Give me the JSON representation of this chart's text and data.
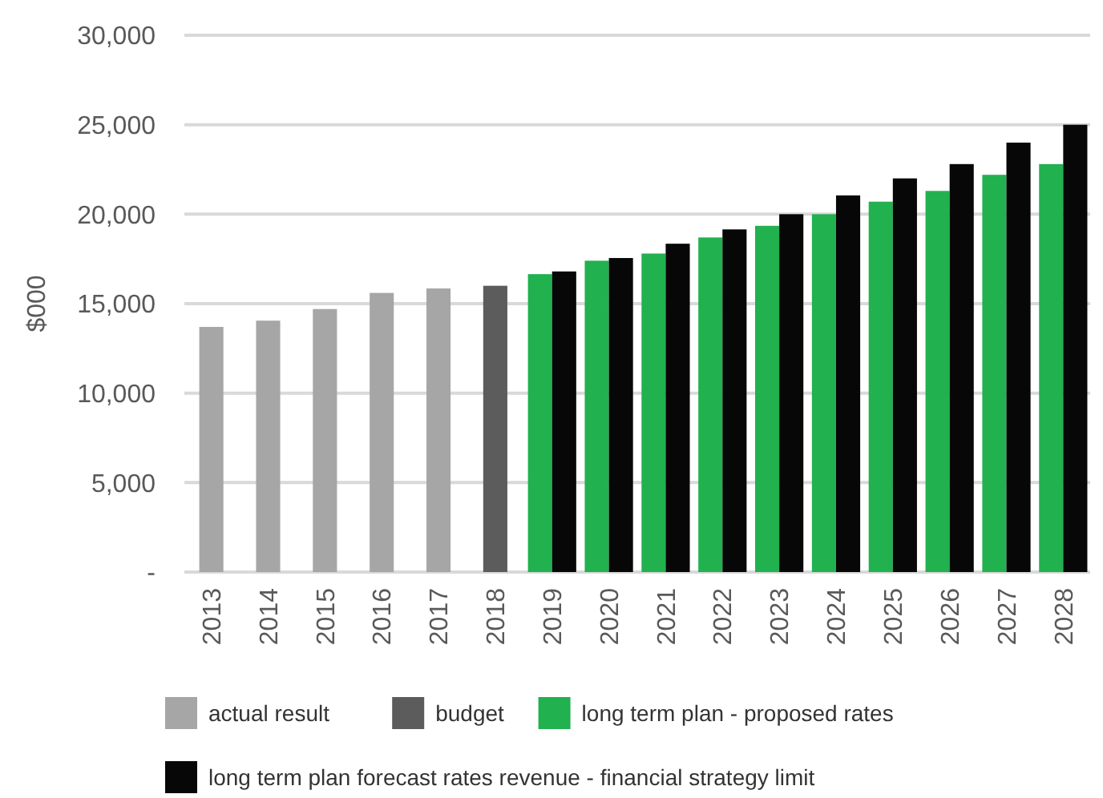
{
  "chart_data": {
    "type": "bar",
    "ylabel": "$000",
    "categories": [
      "2013",
      "2014",
      "2015",
      "2016",
      "2017",
      "2018",
      "2019",
      "2020",
      "2021",
      "2022",
      "2023",
      "2024",
      "2025",
      "2026",
      "2027",
      "2028"
    ],
    "series": [
      {
        "name": "actual result",
        "color": "#a6a6a6",
        "values": [
          13700,
          14050,
          14700,
          15600,
          15850,
          null,
          null,
          null,
          null,
          null,
          null,
          null,
          null,
          null,
          null,
          null
        ]
      },
      {
        "name": "budget",
        "color": "#5b5c5b",
        "values": [
          null,
          null,
          null,
          null,
          null,
          16000,
          null,
          null,
          null,
          null,
          null,
          null,
          null,
          null,
          null,
          null
        ]
      },
      {
        "name": "long term plan - proposed rates",
        "color": "#21b14f",
        "values": [
          null,
          null,
          null,
          null,
          null,
          null,
          16650,
          17400,
          17800,
          18700,
          19350,
          20000,
          20700,
          21300,
          22200,
          22800
        ]
      },
      {
        "name": "long term plan forecast rates revenue - financial strategy limit",
        "color": "#070707",
        "values": [
          null,
          null,
          null,
          null,
          null,
          null,
          16800,
          17550,
          18350,
          19150,
          20000,
          21050,
          22000,
          22800,
          24000,
          25000
        ]
      }
    ],
    "ylim": [
      0,
      30000
    ],
    "yticks": [
      {
        "value": 0,
        "label": "-"
      },
      {
        "value": 5000,
        "label": "5,000"
      },
      {
        "value": 10000,
        "label": "10,000"
      },
      {
        "value": 15000,
        "label": "15,000"
      },
      {
        "value": 20000,
        "label": "20,000"
      },
      {
        "value": 25000,
        "label": "25,000"
      },
      {
        "value": 30000,
        "label": "30,000"
      }
    ],
    "grid": "y",
    "legend": "bottom"
  }
}
